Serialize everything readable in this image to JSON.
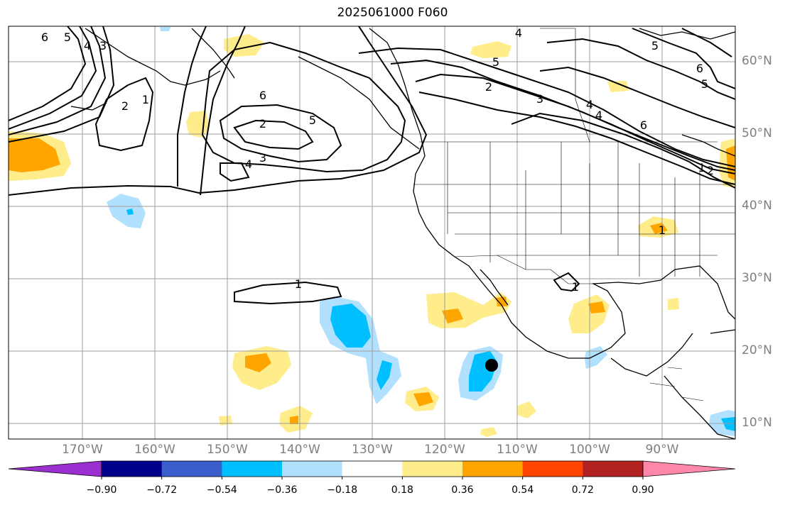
{
  "title": "2025061000 F060",
  "map": {
    "longitude_labels": [
      "170°W",
      "160°W",
      "150°W",
      "140°W",
      "130°W",
      "120°W",
      "110°W",
      "100°W",
      "90°W"
    ],
    "latitude_labels": [
      "60°N",
      "50°N",
      "40°N",
      "30°N",
      "20°N",
      "10°N"
    ],
    "contour_labels": [
      "6",
      "5",
      "4",
      "3",
      "2",
      "1",
      "6",
      "5",
      "2",
      "3",
      "4",
      "1",
      "4",
      "5",
      "2",
      "3",
      "4",
      "4",
      "6",
      "5",
      "6",
      "5",
      "1",
      "2",
      "1",
      "1"
    ],
    "marker": "storm-center-dot"
  },
  "colorbar": {
    "colors": [
      "#9b30d0",
      "#00008b",
      "#3a5fcd",
      "#00bfff",
      "#b2e0ff",
      "#ffffff",
      "#ffec8b",
      "#ffa500",
      "#ff4500",
      "#b22222",
      "#ff88aa"
    ],
    "tick_labels": [
      "−0.90",
      "−0.72",
      "−0.54",
      "−0.36",
      "−0.18",
      "0.18",
      "0.36",
      "0.54",
      "0.72",
      "0.90"
    ]
  }
}
